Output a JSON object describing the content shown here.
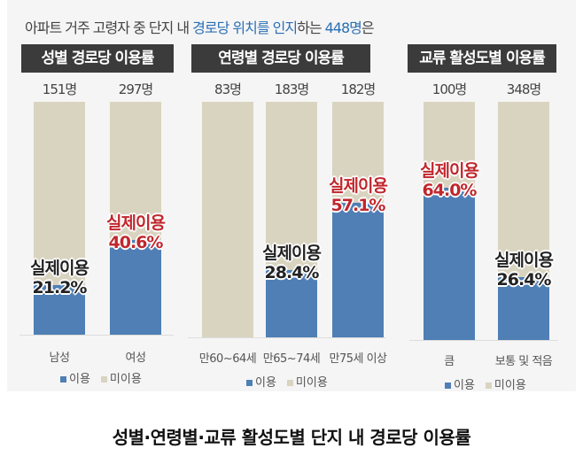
{
  "headline": {
    "part1": "아파트 거주 고령자 중 단지 내 ",
    "highlight1": "경로당 위치를 인지",
    "part2": "하는 ",
    "highlight2": "448명",
    "part3": "은"
  },
  "caption": "성별·연령별·교류 활성도별 단지 내 경로당 이용률",
  "colors": {
    "used": "#4f7fb5",
    "unused": "#d8d4c0",
    "highlight_text": "#c0272d",
    "title_bg": "#3b3b3b",
    "headline_accent": "#2a6fb5"
  },
  "legend": {
    "used": "이용",
    "unused": "미이용"
  },
  "used_label": "실제이용",
  "chart_data": [
    {
      "type": "bar",
      "stacked": true,
      "normalized": true,
      "title": "성별 경로당 이용률",
      "categories": [
        "남성",
        "여성"
      ],
      "counts": [
        "151명",
        "297명"
      ],
      "series": [
        {
          "name": "이용",
          "values": [
            21.2,
            40.6
          ]
        },
        {
          "name": "미이용",
          "values": [
            78.8,
            59.4
          ]
        }
      ],
      "data_labels": [
        "21.2%",
        "40.6%"
      ],
      "highlighted": [
        false,
        true
      ],
      "ylim": [
        0,
        100
      ],
      "legend": "bottom"
    },
    {
      "type": "bar",
      "stacked": true,
      "normalized": true,
      "title": "연령별 경로당 이용률",
      "categories": [
        "만60~64세",
        "만65~74세",
        "만75세 이상"
      ],
      "counts": [
        "83명",
        "183명",
        "182명"
      ],
      "series": [
        {
          "name": "이용",
          "values": [
            0,
            28.4,
            57.1
          ]
        },
        {
          "name": "미이용",
          "values": [
            100,
            71.6,
            42.9
          ]
        }
      ],
      "data_labels": [
        null,
        "28.4%",
        "57.1%"
      ],
      "highlighted": [
        false,
        false,
        true
      ],
      "ylim": [
        0,
        100
      ],
      "legend": "bottom"
    },
    {
      "type": "bar",
      "stacked": true,
      "normalized": true,
      "title": "교류 활성도별 이용률",
      "categories": [
        "큼",
        "보통 및 적음"
      ],
      "counts": [
        "100명",
        "348명"
      ],
      "series": [
        {
          "name": "이용",
          "values": [
            64.0,
            26.4
          ]
        },
        {
          "name": "미이용",
          "values": [
            36.0,
            73.6
          ]
        }
      ],
      "data_labels": [
        "64.0%",
        "26.4%"
      ],
      "highlighted": [
        true,
        false
      ],
      "ylim": [
        0,
        100
      ],
      "legend": "bottom"
    }
  ]
}
